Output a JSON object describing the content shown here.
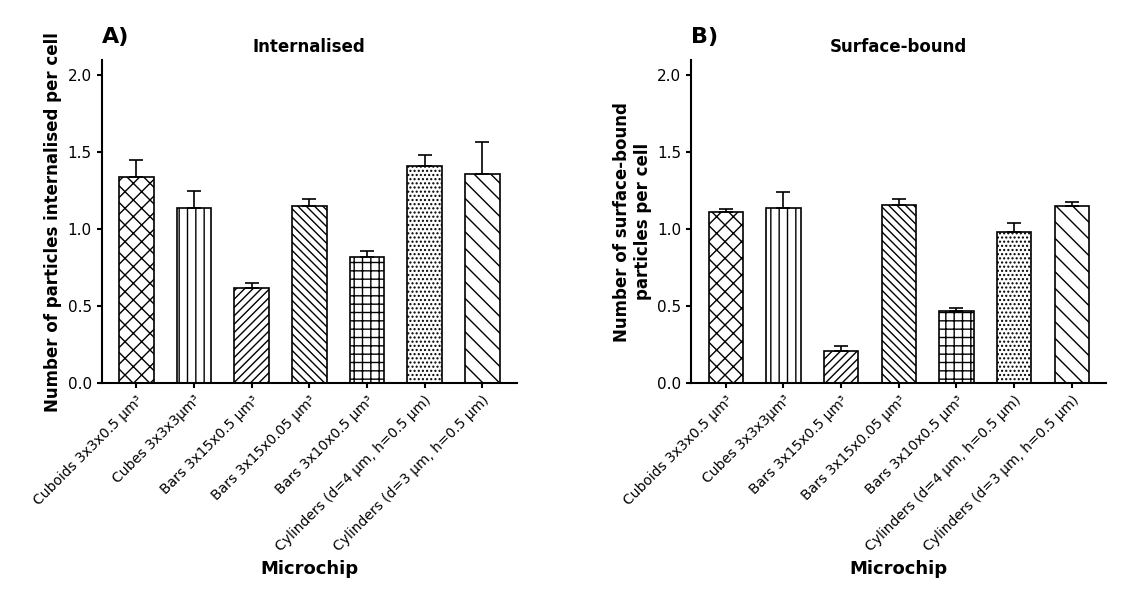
{
  "chart_data": [
    {
      "type": "bar",
      "title": "Internalised",
      "annotation": "A)",
      "x_label": "Microchip",
      "y_label": "Number of particles internalised per cell",
      "categories": [
        "Cuboids 3x3x0.5 µm³",
        "Cubes 3x3x3µm³",
        "Bars 3x15x0.5 µm³",
        "Bars 3x15x0.05 µm³",
        "Bars 3x10x0.5 µm³",
        "Cylinders (d=4 µm, h=0.5 µm)",
        "Cylinders (d=3 µm, h=0.5 µm)"
      ],
      "values": [
        1.34,
        1.14,
        0.62,
        1.15,
        0.82,
        1.41,
        1.36
      ],
      "errors": [
        0.11,
        0.11,
        0.03,
        0.05,
        0.04,
        0.07,
        0.21
      ],
      "color": "#ffffff",
      "ylim": [
        0,
        2.1
      ],
      "yticks": [
        {
          "value": 0,
          "label": "0.0"
        },
        {
          "value": 0.5,
          "label": "0.5"
        },
        {
          "value": 1.0,
          "label": "1.0"
        },
        {
          "value": 1.5,
          "label": "1.5"
        },
        {
          "value": 2.0,
          "label": "2.0"
        }
      ],
      "grid": false
    },
    {
      "type": "bar",
      "title": "Surface-bound",
      "annotation": "B)",
      "x_label": "Microchip",
      "y_label": "Number of surface-bound\nparticles per cell",
      "categories": [
        "Cuboids 3x3x0.5 µm³",
        "Cubes 3x3x3µm³",
        "Bars 3x15x0.5 µm³",
        "Bars 3x15x0.05 µm³",
        "Bars 3x10x0.5 µm³",
        "Cylinders (d=4 µm, h=0.5 µm)",
        "Cylinders (d=3 µm, h=0.5 µm)"
      ],
      "values": [
        1.11,
        1.14,
        0.21,
        1.16,
        0.47,
        0.98,
        1.15
      ],
      "errors": [
        0.02,
        0.1,
        0.03,
        0.04,
        0.02,
        0.06,
        0.03
      ],
      "color": "#ffffff",
      "ylim": [
        0,
        2.1
      ],
      "yticks": [
        {
          "value": 0,
          "label": "0.0"
        },
        {
          "value": 0.5,
          "label": "0.5"
        },
        {
          "value": 1.0,
          "label": "1.0"
        },
        {
          "value": 1.5,
          "label": "1.5"
        },
        {
          "value": 2.0,
          "label": "2.0"
        }
      ],
      "grid": false
    }
  ]
}
